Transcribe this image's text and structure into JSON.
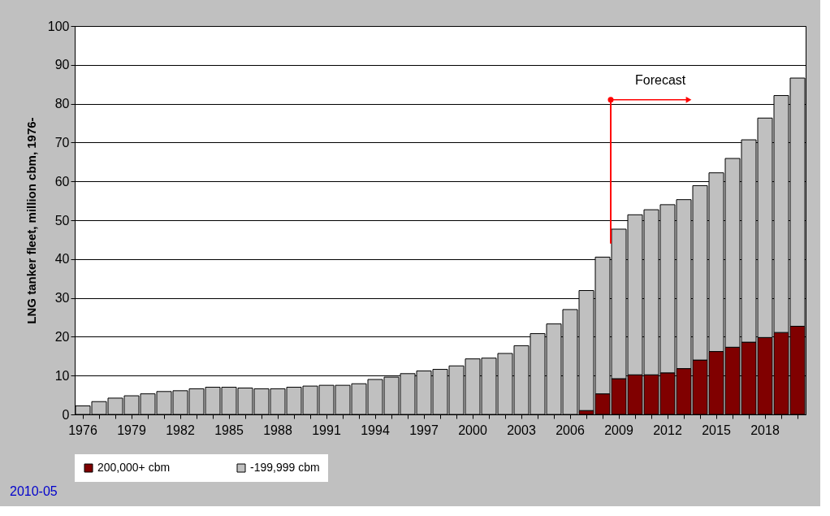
{
  "chart_data": {
    "type": "bar",
    "stacked": true,
    "ylabel": "LNG tanker fleet, million cbm, 1976-",
    "categories": [
      "1976",
      null,
      null,
      "1979",
      null,
      null,
      "1982",
      null,
      null,
      "1985",
      null,
      null,
      "1988",
      null,
      null,
      "1991",
      null,
      null,
      "1994",
      null,
      null,
      "1997",
      null,
      null,
      "2000",
      null,
      null,
      "2003",
      null,
      null,
      "2006",
      null,
      null,
      "2009",
      null,
      null,
      "2012",
      null,
      null,
      "2015",
      null,
      null,
      "2018",
      null,
      null
    ],
    "series": [
      {
        "name": "200,000+ cbm",
        "color": "#800000",
        "values": [
          null,
          null,
          null,
          null,
          null,
          null,
          null,
          null,
          null,
          null,
          null,
          null,
          null,
          null,
          null,
          null,
          null,
          null,
          null,
          null,
          null,
          null,
          null,
          null,
          null,
          null,
          null,
          null,
          null,
          null,
          null,
          1.0,
          5.3,
          9.2,
          10.2,
          10.2,
          10.7,
          11.8,
          14.0,
          16.2,
          17.3,
          18.6,
          19.8,
          21.1,
          22.7
        ]
      },
      {
        "name": "-199,999 cbm",
        "color": "#c0c0c0",
        "values": [
          2.2,
          3.3,
          4.2,
          4.8,
          5.3,
          5.9,
          6.1,
          6.6,
          7.0,
          7.0,
          6.8,
          6.6,
          6.6,
          7.0,
          7.3,
          7.5,
          7.5,
          7.9,
          9.0,
          9.6,
          10.5,
          11.2,
          11.6,
          12.5,
          14.3,
          14.5,
          15.7,
          17.7,
          20.8,
          23.3,
          27.0,
          30.9,
          35.2,
          38.5,
          41.2,
          42.5,
          43.3,
          43.5,
          44.9,
          46.0,
          48.6,
          52.1,
          56.5,
          61.0,
          63.9
        ]
      }
    ],
    "ylim": [
      0,
      100
    ],
    "yticks": [
      0,
      10,
      20,
      30,
      40,
      50,
      60,
      70,
      80,
      90,
      100
    ],
    "grid": "y",
    "legend": "bottom",
    "annotations": [
      "Forecast",
      "2010-05"
    ]
  }
}
